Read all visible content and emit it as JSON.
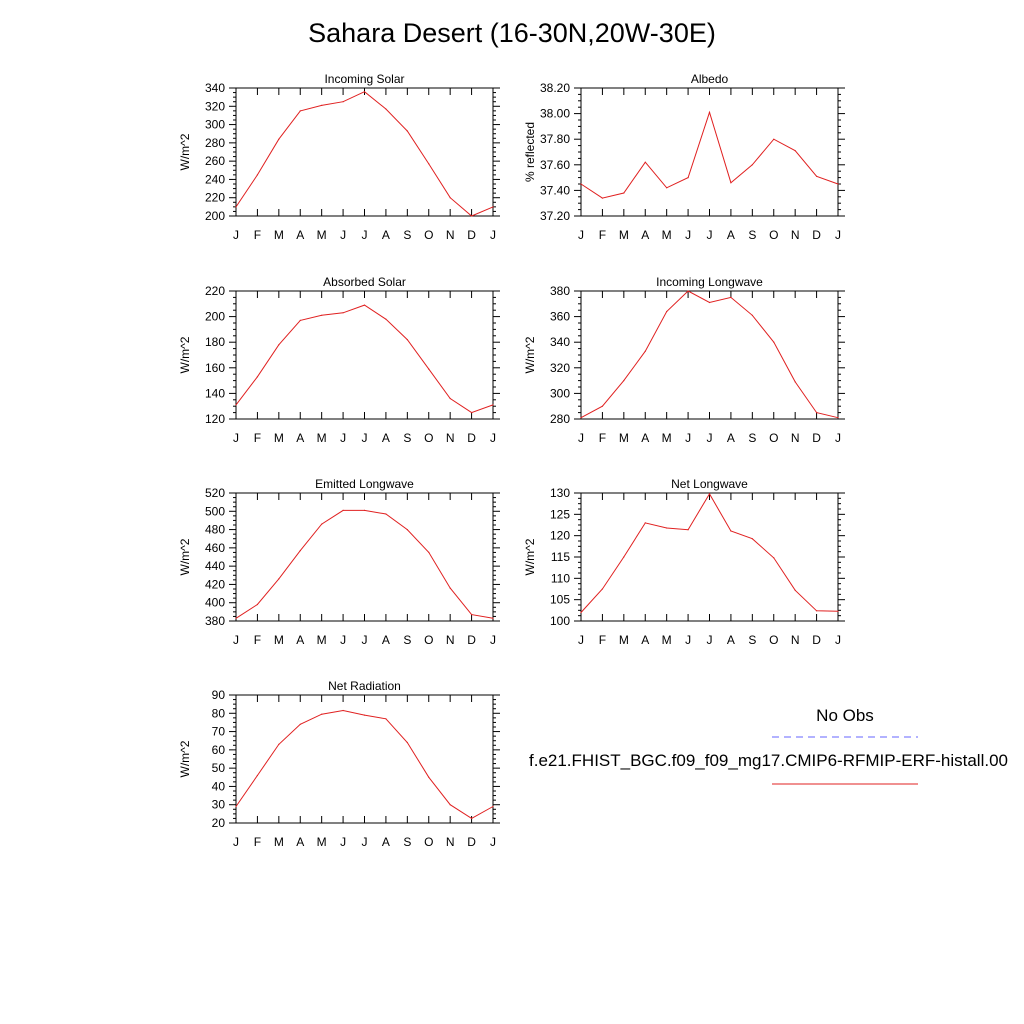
{
  "title": "Sahara Desert (16-30N,20W-30E)",
  "months": [
    "J",
    "F",
    "M",
    "A",
    "M",
    "J",
    "J",
    "A",
    "S",
    "O",
    "N",
    "D",
    "J"
  ],
  "legend": {
    "obs_label": "No Obs",
    "obs_color": "#6666ff",
    "model_label": "f.e21.FHIST_BGC.f09_f09_mg17.CMIP6-RFMIP-ERF-histall.00",
    "model_color": "#e02020"
  },
  "chart_data": [
    {
      "type": "line",
      "title": "Incoming Solar",
      "ylabel": "W/m^2",
      "ylim": [
        200,
        340
      ],
      "yticks": [
        200,
        220,
        240,
        260,
        280,
        300,
        320,
        340
      ],
      "ytick_labels": [
        "200",
        "220",
        "240",
        "260",
        "280",
        "300",
        "320",
        "340"
      ],
      "x": [
        "J",
        "F",
        "M",
        "A",
        "M",
        "J",
        "J",
        "A",
        "S",
        "O",
        "N",
        "D",
        "J"
      ],
      "series": [
        {
          "values": [
            210,
            245,
            284,
            315,
            321,
            325,
            336,
            317,
            293,
            257,
            220,
            200,
            210
          ]
        }
      ]
    },
    {
      "type": "line",
      "title": "Albedo",
      "ylabel": "% reflected",
      "ylim": [
        37.2,
        38.2
      ],
      "yticks": [
        37.2,
        37.4,
        37.6,
        37.8,
        38.0,
        38.2
      ],
      "ytick_labels": [
        "37.20",
        "37.40",
        "37.60",
        "37.80",
        "38.00",
        "38.20"
      ],
      "x": [
        "J",
        "F",
        "M",
        "A",
        "M",
        "J",
        "J",
        "A",
        "S",
        "O",
        "N",
        "D",
        "J"
      ],
      "series": [
        {
          "values": [
            37.45,
            37.34,
            37.38,
            37.62,
            37.42,
            37.5,
            38.01,
            37.46,
            37.6,
            37.8,
            37.71,
            37.51,
            37.45
          ]
        }
      ]
    },
    {
      "type": "line",
      "title": "Absorbed Solar",
      "ylabel": "W/m^2",
      "ylim": [
        120,
        220
      ],
      "yticks": [
        120,
        140,
        160,
        180,
        200,
        220
      ],
      "ytick_labels": [
        "120",
        "140",
        "160",
        "180",
        "200",
        "220"
      ],
      "x": [
        "J",
        "F",
        "M",
        "A",
        "M",
        "J",
        "J",
        "A",
        "S",
        "O",
        "N",
        "D",
        "J"
      ],
      "series": [
        {
          "values": [
            131,
            153,
            178,
            197,
            201,
            203,
            209,
            198,
            182,
            159,
            136,
            125,
            131
          ]
        }
      ]
    },
    {
      "type": "line",
      "title": "Incoming Longwave",
      "ylabel": "W/m^2",
      "ylim": [
        280,
        380
      ],
      "yticks": [
        280,
        300,
        320,
        340,
        360,
        380
      ],
      "ytick_labels": [
        "280",
        "300",
        "320",
        "340",
        "360",
        "380"
      ],
      "x": [
        "J",
        "F",
        "M",
        "A",
        "M",
        "J",
        "J",
        "A",
        "S",
        "O",
        "N",
        "D",
        "J"
      ],
      "series": [
        {
          "values": [
            281,
            290,
            310,
            333,
            364,
            380,
            371,
            375,
            361,
            340,
            309,
            285,
            281
          ]
        }
      ]
    },
    {
      "type": "line",
      "title": "Emitted Longwave",
      "ylabel": "W/m^2",
      "ylim": [
        380,
        520
      ],
      "yticks": [
        380,
        400,
        420,
        440,
        460,
        480,
        500,
        520
      ],
      "ytick_labels": [
        "380",
        "400",
        "420",
        "440",
        "460",
        "480",
        "500",
        "520"
      ],
      "x": [
        "J",
        "F",
        "M",
        "A",
        "M",
        "J",
        "J",
        "A",
        "S",
        "O",
        "N",
        "D",
        "J"
      ],
      "series": [
        {
          "values": [
            383,
            398,
            426,
            457,
            486,
            501,
            501,
            497,
            480,
            455,
            416,
            387,
            383
          ]
        }
      ]
    },
    {
      "type": "line",
      "title": "Net Longwave",
      "ylabel": "W/m^2",
      "ylim": [
        100,
        130
      ],
      "yticks": [
        100,
        105,
        110,
        115,
        120,
        125,
        130
      ],
      "ytick_labels": [
        "100",
        "105",
        "110",
        "115",
        "120",
        "125",
        "130"
      ],
      "x": [
        "J",
        "F",
        "M",
        "A",
        "M",
        "J",
        "J",
        "A",
        "S",
        "O",
        "N",
        "D",
        "J"
      ],
      "series": [
        {
          "values": [
            102,
            107.5,
            115,
            123,
            121.8,
            121.4,
            129.8,
            121.1,
            119.3,
            114.8,
            107.2,
            102.4,
            102.3
          ]
        }
      ]
    },
    {
      "type": "line",
      "title": "Net Radiation",
      "ylabel": "W/m^2",
      "ylim": [
        20,
        90
      ],
      "yticks": [
        20,
        30,
        40,
        50,
        60,
        70,
        80,
        90
      ],
      "ytick_labels": [
        "20",
        "30",
        "40",
        "50",
        "60",
        "70",
        "80",
        "90"
      ],
      "x": [
        "J",
        "F",
        "M",
        "A",
        "M",
        "J",
        "J",
        "A",
        "S",
        "O",
        "N",
        "D",
        "J"
      ],
      "series": [
        {
          "values": [
            29,
            46,
            63,
            74,
            79.5,
            81.5,
            79,
            77,
            64,
            45,
            30,
            22.5,
            29
          ]
        }
      ]
    }
  ]
}
